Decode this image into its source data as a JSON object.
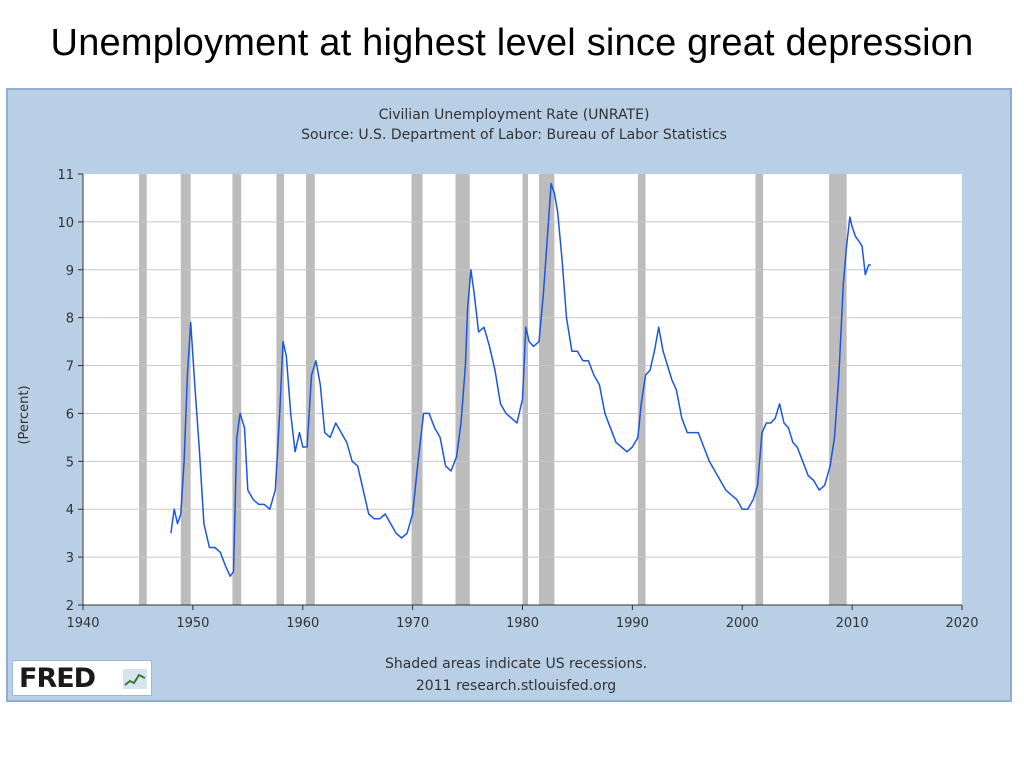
{
  "slide": {
    "title": "Unemployment at highest level since great depression"
  },
  "logo": {
    "text": "FRED"
  },
  "footer": {
    "line1": "Shaded areas indicate US recessions.",
    "line2": "2011 research.stlouisfed.org"
  },
  "colors": {
    "frame": "#b8cfe6",
    "line": "#1c55e0",
    "recession": "#bcbcbc",
    "grid": "#c8c8c8",
    "plot_bg": "#ffffff"
  },
  "chart_data": {
    "type": "line",
    "title": "Civilian Unemployment Rate (UNRATE)",
    "subtitle": "Source: U.S. Department of Labor: Bureau of Labor Statistics",
    "xlabel": "",
    "ylabel": "(Percent)",
    "xlim": [
      1940,
      2020
    ],
    "ylim": [
      2,
      11
    ],
    "xticks": [
      1940,
      1950,
      1960,
      1970,
      1980,
      1990,
      2000,
      2010,
      2020
    ],
    "yticks": [
      2,
      3,
      4,
      5,
      6,
      7,
      8,
      9,
      10,
      11
    ],
    "grid": true,
    "recessions": [
      [
        1945.1,
        1945.8
      ],
      [
        1948.9,
        1949.8
      ],
      [
        1953.6,
        1954.4
      ],
      [
        1957.6,
        1958.3
      ],
      [
        1960.3,
        1961.1
      ],
      [
        1969.9,
        1970.9
      ],
      [
        1973.9,
        1975.2
      ],
      [
        1980.0,
        1980.5
      ],
      [
        1981.5,
        1982.9
      ],
      [
        1990.5,
        1991.2
      ],
      [
        2001.2,
        2001.9
      ],
      [
        2007.9,
        2009.5
      ]
    ],
    "series": [
      {
        "name": "",
        "x": [
          1948.0,
          1948.3,
          1948.6,
          1948.9,
          1949.2,
          1949.5,
          1949.8,
          1950.2,
          1950.6,
          1951.0,
          1951.5,
          1952.0,
          1952.5,
          1953.0,
          1953.4,
          1953.7,
          1954.0,
          1954.3,
          1954.7,
          1955.0,
          1955.5,
          1956.0,
          1956.5,
          1957.0,
          1957.5,
          1957.9,
          1958.2,
          1958.5,
          1958.9,
          1959.3,
          1959.7,
          1960.0,
          1960.4,
          1960.8,
          1961.2,
          1961.6,
          1962.0,
          1962.5,
          1963.0,
          1963.5,
          1964.0,
          1964.5,
          1965.0,
          1965.5,
          1966.0,
          1966.5,
          1967.0,
          1967.5,
          1968.0,
          1968.5,
          1969.0,
          1969.5,
          1970.0,
          1970.5,
          1971.0,
          1971.5,
          1972.0,
          1972.5,
          1973.0,
          1973.5,
          1974.0,
          1974.4,
          1974.8,
          1975.0,
          1975.3,
          1975.6,
          1976.0,
          1976.5,
          1977.0,
          1977.5,
          1978.0,
          1978.5,
          1979.0,
          1979.5,
          1980.0,
          1980.3,
          1980.6,
          1981.0,
          1981.5,
          1981.9,
          1982.3,
          1982.6,
          1982.9,
          1983.2,
          1983.6,
          1984.0,
          1984.5,
          1985.0,
          1985.5,
          1986.0,
          1986.5,
          1987.0,
          1987.5,
          1988.0,
          1988.5,
          1989.0,
          1989.5,
          1990.0,
          1990.5,
          1990.8,
          1991.2,
          1991.6,
          1992.0,
          1992.4,
          1992.8,
          1993.2,
          1993.6,
          1994.0,
          1994.5,
          1995.0,
          1995.5,
          1996.0,
          1996.5,
          1997.0,
          1997.5,
          1998.0,
          1998.5,
          1999.0,
          1999.5,
          2000.0,
          2000.5,
          2001.0,
          2001.4,
          2001.8,
          2002.2,
          2002.6,
          2003.0,
          2003.4,
          2003.8,
          2004.2,
          2004.6,
          2005.0,
          2005.5,
          2006.0,
          2006.5,
          2007.0,
          2007.5,
          2008.0,
          2008.4,
          2008.8,
          2009.2,
          2009.5,
          2009.8,
          2010.0,
          2010.3,
          2010.6,
          2010.9,
          2011.2,
          2011.5,
          2011.7
        ],
        "values": [
          3.5,
          4.0,
          3.7,
          3.9,
          5.0,
          6.8,
          7.9,
          6.5,
          5.2,
          3.7,
          3.2,
          3.2,
          3.1,
          2.8,
          2.6,
          2.7,
          5.5,
          6.0,
          5.7,
          4.4,
          4.2,
          4.1,
          4.1,
          4.0,
          4.4,
          6.0,
          7.5,
          7.2,
          6.0,
          5.2,
          5.6,
          5.3,
          5.3,
          6.8,
          7.1,
          6.6,
          5.6,
          5.5,
          5.8,
          5.6,
          5.4,
          5.0,
          4.9,
          4.4,
          3.9,
          3.8,
          3.8,
          3.9,
          3.7,
          3.5,
          3.4,
          3.5,
          3.9,
          5.0,
          6.0,
          6.0,
          5.7,
          5.5,
          4.9,
          4.8,
          5.1,
          5.8,
          7.0,
          8.2,
          9.0,
          8.5,
          7.7,
          7.8,
          7.4,
          6.9,
          6.2,
          6.0,
          5.9,
          5.8,
          6.3,
          7.8,
          7.5,
          7.4,
          7.5,
          8.5,
          9.8,
          10.8,
          10.6,
          10.2,
          9.2,
          8.0,
          7.3,
          7.3,
          7.1,
          7.1,
          6.8,
          6.6,
          6.0,
          5.7,
          5.4,
          5.3,
          5.2,
          5.3,
          5.5,
          6.2,
          6.8,
          6.9,
          7.3,
          7.8,
          7.3,
          7.0,
          6.7,
          6.5,
          5.9,
          5.6,
          5.6,
          5.6,
          5.3,
          5.0,
          4.8,
          4.6,
          4.4,
          4.3,
          4.2,
          4.0,
          4.0,
          4.2,
          4.5,
          5.6,
          5.8,
          5.8,
          5.9,
          6.2,
          5.8,
          5.7,
          5.4,
          5.3,
          5.0,
          4.7,
          4.6,
          4.4,
          4.5,
          4.9,
          5.5,
          6.8,
          8.7,
          9.5,
          10.1,
          9.9,
          9.7,
          9.6,
          9.5,
          8.9,
          9.1,
          9.1
        ]
      }
    ]
  }
}
